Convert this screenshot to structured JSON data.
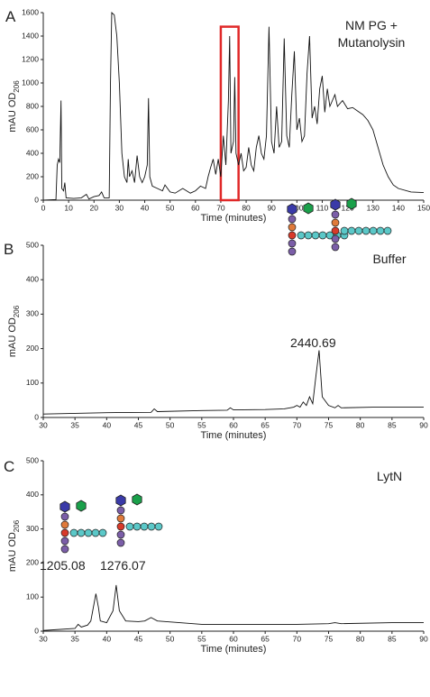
{
  "chart_data": [
    {
      "type": "line",
      "panel_label": "A",
      "title": [
        "NM PG +",
        "Mutanolysin"
      ],
      "x_label": "Time (minutes)",
      "y_label": "mAU OD",
      "y_label_sub": "206",
      "xlim": [
        0,
        150
      ],
      "ylim": [
        0,
        1600
      ],
      "xticks": [
        0,
        10,
        20,
        30,
        40,
        50,
        60,
        70,
        80,
        90,
        100,
        110,
        120,
        130,
        140,
        150
      ],
      "yticks": [
        0,
        200,
        400,
        600,
        800,
        1000,
        1200,
        1400,
        1600
      ],
      "highlight_box": {
        "x": [
          70,
          77
        ],
        "y": [
          0,
          1480
        ],
        "color": "#e02828"
      },
      "series": [
        {
          "color": "#111111",
          "x": [
            0,
            5,
            5.5,
            6,
            6.5,
            7,
            7.3,
            8,
            8.5,
            9,
            12,
            15,
            17,
            18,
            20,
            22,
            23,
            24,
            26,
            26.5,
            27,
            28,
            29,
            30,
            31,
            32,
            33,
            33.5,
            34,
            35,
            36,
            37,
            38,
            39,
            40,
            41,
            41.5,
            42,
            43,
            45,
            47,
            48,
            50,
            52,
            55,
            58,
            60,
            62,
            64,
            65,
            66,
            67,
            68,
            69,
            70,
            71,
            72,
            73,
            73.5,
            74,
            75,
            75.5,
            76,
            77,
            78,
            79,
            80,
            81,
            82,
            83,
            84,
            85,
            86,
            87,
            88,
            89,
            90,
            91,
            92,
            93,
            94,
            95,
            96,
            97,
            98,
            99,
            100,
            101,
            102,
            103,
            104,
            105,
            106,
            107,
            108,
            109,
            110,
            111,
            112,
            113,
            114,
            115,
            116,
            118,
            120,
            122,
            124,
            126,
            128,
            130,
            132,
            134,
            136,
            138,
            140,
            145,
            150
          ],
          "values": [
            0,
            5,
            300,
            350,
            320,
            850,
            100,
            80,
            150,
            20,
            15,
            20,
            50,
            10,
            30,
            40,
            70,
            20,
            20,
            1000,
            1600,
            1580,
            1400,
            1000,
            400,
            200,
            150,
            350,
            200,
            250,
            150,
            380,
            200,
            150,
            200,
            300,
            870,
            200,
            120,
            100,
            80,
            130,
            70,
            60,
            100,
            60,
            80,
            120,
            100,
            200,
            280,
            350,
            220,
            350,
            200,
            550,
            300,
            850,
            1400,
            400,
            500,
            1050,
            400,
            300,
            400,
            250,
            280,
            450,
            300,
            250,
            450,
            550,
            400,
            350,
            550,
            1480,
            500,
            400,
            800,
            450,
            500,
            1380,
            550,
            450,
            900,
            1270,
            600,
            700,
            500,
            550,
            1080,
            1400,
            700,
            800,
            650,
            950,
            1060,
            750,
            950,
            800,
            850,
            900,
            800,
            850,
            780,
            790,
            760,
            730,
            680,
            600,
            450,
            300,
            200,
            130,
            100,
            70,
            65
          ]
        }
      ]
    },
    {
      "type": "line",
      "panel_label": "B",
      "title": [
        "Buffer"
      ],
      "x_label": "Time (minutes)",
      "y_label": "mAU OD",
      "y_label_sub": "206",
      "xlim": [
        30,
        90
      ],
      "ylim": [
        0,
        500
      ],
      "xticks": [
        30,
        35,
        40,
        45,
        50,
        55,
        60,
        65,
        70,
        75,
        80,
        85,
        90
      ],
      "yticks": [
        0,
        100,
        200,
        300,
        400,
        500
      ],
      "peak_labels": [
        {
          "text": "2440.69",
          "color": "#e03030"
        }
      ],
      "series": [
        {
          "color": "#111111",
          "x": [
            30,
            40,
            47,
            47.5,
            48,
            55,
            59,
            59.5,
            60,
            65,
            68,
            69.5,
            70,
            70.5,
            71,
            71.5,
            72,
            72.5,
            73,
            73.5,
            74,
            75,
            76,
            76.5,
            77,
            82,
            90
          ],
          "values": [
            10,
            14,
            15,
            25,
            17,
            20,
            21,
            28,
            22,
            23,
            25,
            30,
            35,
            30,
            45,
            35,
            60,
            40,
            120,
            195,
            60,
            35,
            28,
            35,
            28,
            30,
            30
          ]
        }
      ]
    },
    {
      "type": "line",
      "panel_label": "C",
      "title": [
        "LytN"
      ],
      "x_label": "Time (minutes)",
      "y_label": "mAU OD",
      "y_label_sub": "206",
      "xlim": [
        30,
        90
      ],
      "ylim": [
        0,
        500
      ],
      "xticks": [
        30,
        35,
        40,
        45,
        50,
        55,
        60,
        65,
        70,
        75,
        80,
        85,
        90
      ],
      "yticks": [
        0,
        100,
        200,
        300,
        400,
        500
      ],
      "peak_labels": [
        {
          "text": "1205.08",
          "color": "#e03030"
        },
        {
          "text": "1276.07",
          "color": "#e03030"
        }
      ],
      "series": [
        {
          "color": "#111111",
          "x": [
            30,
            35,
            35.5,
            36,
            37,
            37.5,
            38,
            38.3,
            38.7,
            39,
            40,
            41,
            41.5,
            42,
            43,
            45,
            46,
            47,
            48,
            55,
            60,
            65,
            70,
            75,
            76,
            77,
            85,
            90
          ],
          "values": [
            2,
            8,
            20,
            12,
            18,
            30,
            80,
            110,
            70,
            30,
            25,
            60,
            135,
            60,
            30,
            28,
            30,
            40,
            30,
            20,
            20,
            20,
            20,
            22,
            25,
            22,
            25,
            25
          ]
        }
      ]
    }
  ]
}
